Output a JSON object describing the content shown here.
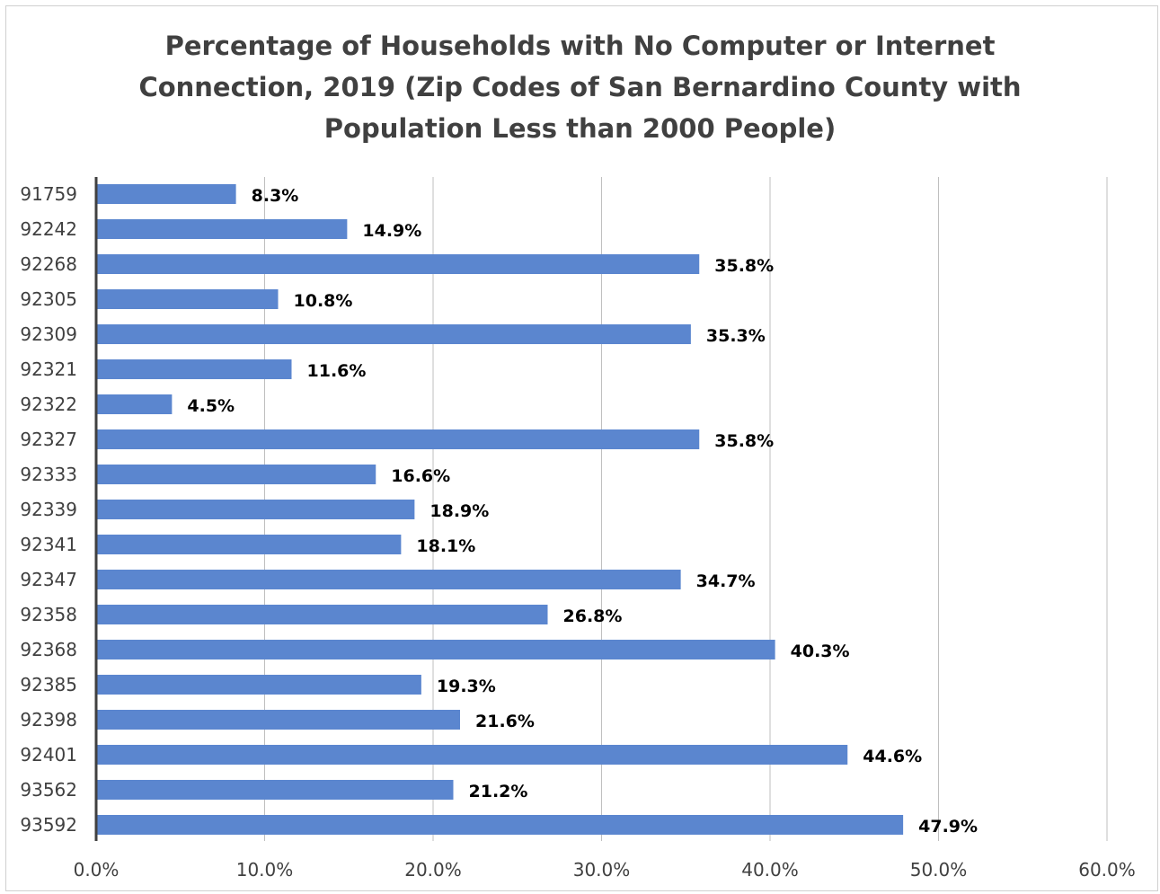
{
  "chart_data": {
    "type": "bar",
    "orientation": "horizontal",
    "title_lines": [
      "Percentage of Households with No Computer or Internet",
      "Connection, 2019 (Zip Codes of San Bernardino County with",
      "Population Less than 2000 People)"
    ],
    "categories": [
      "91759",
      "92242",
      "92268",
      "92305",
      "92309",
      "92321",
      "92322",
      "92327",
      "92333",
      "92339",
      "92341",
      "92347",
      "92358",
      "92368",
      "92385",
      "92398",
      "92401",
      "93562",
      "93592"
    ],
    "values": [
      8.3,
      14.9,
      35.8,
      10.8,
      35.3,
      11.6,
      4.5,
      35.8,
      16.6,
      18.9,
      18.1,
      34.7,
      26.8,
      40.3,
      19.3,
      21.6,
      44.6,
      21.2,
      47.9
    ],
    "value_labels": [
      "8.3%",
      "14.9%",
      "35.8%",
      "10.8%",
      "35.3%",
      "11.6%",
      "4.5%",
      "35.8%",
      "16.6%",
      "18.9%",
      "18.1%",
      "34.7%",
      "26.8%",
      "40.3%",
      "19.3%",
      "21.6%",
      "44.6%",
      "21.2%",
      "47.9%"
    ],
    "xlim": [
      0,
      60
    ],
    "x_ticks": [
      0,
      10,
      20,
      30,
      40,
      50,
      60
    ],
    "x_tick_labels": [
      "0.0%",
      "10.0%",
      "20.0%",
      "30.0%",
      "40.0%",
      "50.0%",
      "60.0%"
    ],
    "xlabel": "",
    "ylabel": "",
    "grid": "vertical",
    "legend": "none",
    "bar_color": "#5b86cf",
    "grid_color": "#bfbfbf",
    "axis_color": "#404040"
  }
}
